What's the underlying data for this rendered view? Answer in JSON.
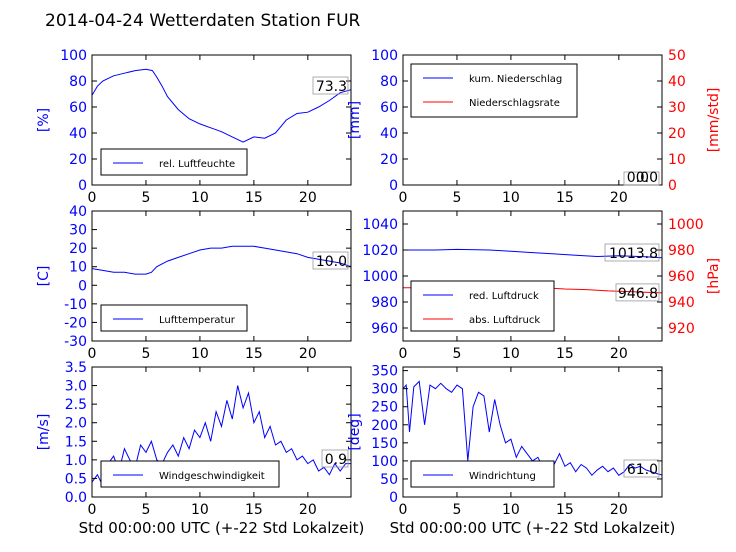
{
  "title": "2014-04-24 Wetterdaten Station FUR",
  "chart_data": [
    {
      "type": "line",
      "panel": "humidity",
      "ylabel": "[%]",
      "xlim": [
        0,
        24
      ],
      "ylim": [
        0,
        100
      ],
      "xticks": [
        0,
        5,
        10,
        15,
        20
      ],
      "yticks": [
        0,
        20,
        40,
        60,
        80,
        100
      ],
      "grid": false,
      "legend_position": "lower-left",
      "annotation": "73.3",
      "series": [
        {
          "name": "rel. Luftfeuchte",
          "color": "#0000ff",
          "x": [
            0,
            0.5,
            1,
            2,
            3,
            4,
            5,
            5.6,
            6,
            6.5,
            7,
            8,
            9,
            10,
            11,
            12,
            13,
            14,
            15,
            16,
            17,
            18,
            19,
            20,
            21,
            22,
            23,
            24
          ],
          "y": [
            69,
            76,
            80,
            84,
            86,
            88,
            89,
            88,
            83,
            76,
            68,
            58,
            51,
            47,
            44,
            41,
            37,
            33,
            37,
            36,
            40,
            50,
            55,
            56,
            60,
            65,
            71,
            73.3
          ]
        }
      ]
    },
    {
      "type": "line",
      "panel": "precipitation",
      "ylabel": "[mm]",
      "ylabel_right": "[mm/std]",
      "xlim": [
        0,
        24
      ],
      "ylim": [
        0,
        100
      ],
      "ylim_right": [
        0,
        50
      ],
      "xticks": [
        0,
        5,
        10,
        15,
        20
      ],
      "yticks": [
        0,
        20,
        40,
        60,
        80,
        100
      ],
      "yticks_right": [
        0,
        10,
        20,
        30,
        40,
        50
      ],
      "grid": false,
      "legend_position": "top-left",
      "annotation": "0.0",
      "annotation2": "0.0",
      "series": [
        {
          "name": "kum. Niederschlag",
          "color": "#0000ff",
          "axis": "left",
          "x": [
            0,
            24
          ],
          "y": [
            0,
            0
          ]
        },
        {
          "name": "Niederschlagsrate",
          "color": "#ff0000",
          "axis": "right",
          "x": [
            0,
            24
          ],
          "y": [
            0,
            0
          ]
        }
      ]
    },
    {
      "type": "line",
      "panel": "temperature",
      "ylabel": "[C]",
      "xlim": [
        0,
        24
      ],
      "ylim": [
        -30,
        40
      ],
      "xticks": [
        0,
        5,
        10,
        15,
        20
      ],
      "yticks": [
        -30,
        -20,
        -10,
        0,
        10,
        20,
        30,
        40
      ],
      "grid": false,
      "legend_position": "lower-left",
      "annotation": "10.0",
      "series": [
        {
          "name": "Lufttemperatur",
          "color": "#0000ff",
          "x": [
            0,
            1,
            2,
            3,
            4,
            5,
            5.5,
            6,
            7,
            8,
            9,
            10,
            11,
            12,
            13,
            14,
            15,
            16,
            17,
            18,
            19,
            20,
            21,
            22,
            23,
            24
          ],
          "y": [
            9,
            8,
            7,
            7,
            6,
            6,
            7,
            10,
            13,
            15,
            17,
            19,
            20,
            20,
            21,
            21,
            21,
            20,
            19,
            18,
            17,
            15,
            14,
            13,
            12,
            10
          ]
        }
      ]
    },
    {
      "type": "line",
      "panel": "pressure",
      "ylabel_right": "[hPa]",
      "xlim": [
        0,
        24
      ],
      "ylim": [
        950,
        1050
      ],
      "ylim_right": [
        910,
        1010
      ],
      "xticks": [
        0,
        5,
        10,
        15,
        20
      ],
      "yticks": [
        960,
        980,
        1000,
        1020,
        1040
      ],
      "yticks_right": [
        920,
        940,
        960,
        980,
        1000
      ],
      "grid": false,
      "legend_position": "lower-left",
      "annotation": "1013.8",
      "annotation2": "946.8",
      "series": [
        {
          "name": "red. Luftdruck",
          "color": "#0000ff",
          "axis": "left",
          "x": [
            0,
            3,
            5,
            8,
            10,
            12,
            14,
            16,
            18,
            20,
            22,
            24
          ],
          "y": [
            1020,
            1020,
            1020.5,
            1020,
            1019,
            1018,
            1017,
            1016,
            1015,
            1015.5,
            1015,
            1014
          ]
        },
        {
          "name": "abs. Luftdruck",
          "color": "#ff0000",
          "axis": "right",
          "x": [
            0,
            3,
            5,
            7,
            9,
            11,
            13,
            15,
            17,
            19,
            21,
            24
          ],
          "y": [
            951,
            951,
            951,
            951.5,
            952,
            951.5,
            951,
            950,
            949.5,
            948.5,
            948,
            947
          ]
        }
      ]
    },
    {
      "type": "line",
      "panel": "wind-speed",
      "ylabel": "[m/s]",
      "xlabel": "Std 00:00:00 UTC (+-22 Std Lokalzeit)",
      "xlim": [
        0,
        24
      ],
      "ylim": [
        0,
        3.5
      ],
      "xticks": [
        0,
        5,
        10,
        15,
        20
      ],
      "yticks": [
        0,
        0.5,
        1.0,
        1.5,
        2.0,
        2.5,
        3.0,
        3.5
      ],
      "ytick_labels": [
        "0.0",
        "0.5",
        "1.0",
        "1.5",
        "2.0",
        "2.5",
        "3.0",
        "3.5"
      ],
      "grid": false,
      "legend_position": "lower-center",
      "annotation": "0.9",
      "series": [
        {
          "name": "Windgeschwindigkeit",
          "color": "#0000ff",
          "x": [
            0,
            0.5,
            1,
            1.5,
            2,
            2.5,
            3,
            3.5,
            4,
            4.5,
            5,
            5.5,
            6,
            6.5,
            7,
            7.5,
            8,
            8.5,
            9,
            9.5,
            10,
            10.5,
            11,
            11.5,
            12,
            12.5,
            13,
            13.5,
            14,
            14.5,
            15,
            15.5,
            16,
            16.5,
            17,
            17.5,
            18,
            18.5,
            19,
            19.5,
            20,
            20.5,
            21,
            21.5,
            22,
            22.5,
            23,
            23.5,
            24
          ],
          "y": [
            0.4,
            0.6,
            0.3,
            0.9,
            1.1,
            0.7,
            1.3,
            1.0,
            0.8,
            1.4,
            1.2,
            1.5,
            1.0,
            0.9,
            1.2,
            1.4,
            1.1,
            1.6,
            1.3,
            1.8,
            1.6,
            2.0,
            1.5,
            2.3,
            1.9,
            2.6,
            2.1,
            3.0,
            2.4,
            2.8,
            2.0,
            2.3,
            1.6,
            1.9,
            1.4,
            1.5,
            1.2,
            1.3,
            1.0,
            1.1,
            0.9,
            1.0,
            0.7,
            0.8,
            0.6,
            0.9,
            0.7,
            0.9,
            0.9
          ]
        }
      ]
    },
    {
      "type": "line",
      "panel": "wind-direction",
      "ylabel": "[deg]",
      "xlabel": "Std 00:00:00 UTC (+-22 Std Lokalzeit)",
      "xlim": [
        0,
        24
      ],
      "ylim": [
        0,
        360
      ],
      "xticks": [
        0,
        5,
        10,
        15,
        20
      ],
      "yticks": [
        0,
        50,
        100,
        150,
        200,
        250,
        300,
        350
      ],
      "grid": false,
      "legend_position": "lower-left",
      "annotation": "61.0",
      "series": [
        {
          "name": "Windrichtung",
          "color": "#0000ff",
          "x": [
            0,
            0.3,
            0.6,
            1,
            1.5,
            2,
            2.5,
            3,
            3.5,
            4,
            4.5,
            5,
            5.5,
            6,
            6.5,
            7,
            7.5,
            8,
            8.5,
            9,
            9.5,
            10,
            10.5,
            11,
            11.5,
            12,
            12.5,
            13,
            13.5,
            14,
            14.5,
            15,
            15.5,
            16,
            16.5,
            17,
            17.5,
            18,
            18.5,
            19,
            19.5,
            20,
            20.5,
            21,
            21.5,
            22,
            22.5,
            23,
            23.5,
            24
          ],
          "y": [
            300,
            310,
            180,
            305,
            320,
            200,
            310,
            300,
            315,
            300,
            290,
            310,
            300,
            100,
            250,
            290,
            280,
            180,
            270,
            200,
            150,
            160,
            110,
            140,
            120,
            100,
            110,
            80,
            100,
            90,
            120,
            85,
            95,
            70,
            90,
            80,
            60,
            75,
            85,
            70,
            80,
            60,
            70,
            90,
            80,
            85,
            75,
            70,
            65,
            61
          ]
        }
      ]
    }
  ]
}
